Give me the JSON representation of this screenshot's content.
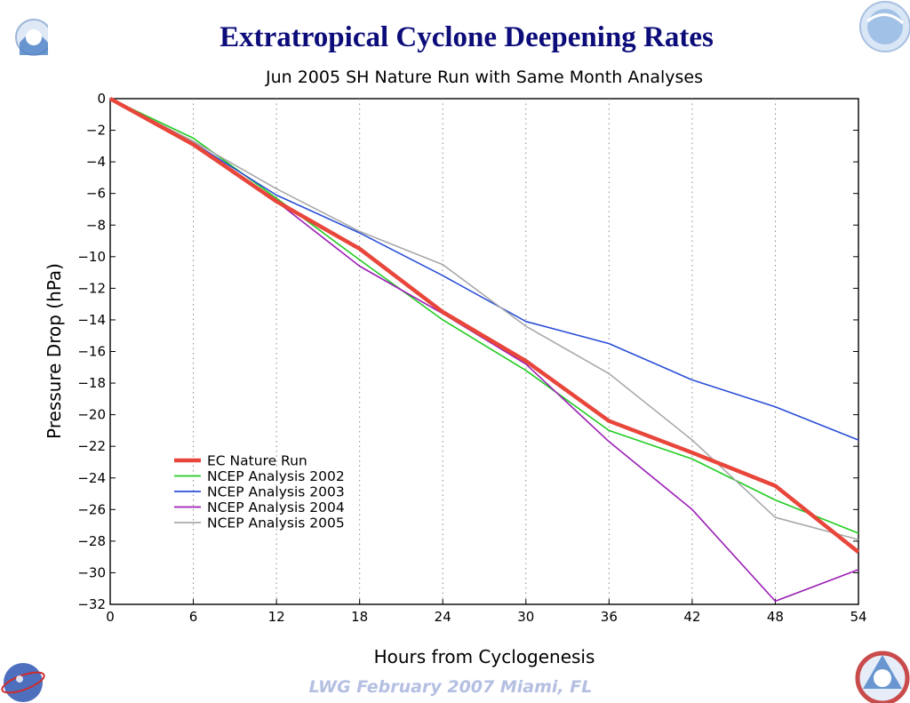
{
  "slide": {
    "title": "Extratropical Cyclone Deepening Rates",
    "footer": "LWG  February 2007 Miami, FL"
  },
  "chart_data": {
    "type": "line",
    "title": "Jun 2005 SH Nature Run with Same Month Analyses",
    "xlabel": "Hours from Cyclogenesis",
    "ylabel": "Pressure Drop (hPa)",
    "xlim": [
      0,
      54
    ],
    "ylim": [
      -32,
      0
    ],
    "x_ticks": [
      0,
      6,
      12,
      18,
      24,
      30,
      36,
      42,
      48,
      54
    ],
    "y_ticks": [
      0,
      -2,
      -4,
      -6,
      -8,
      -10,
      -12,
      -14,
      -16,
      -18,
      -20,
      -22,
      -24,
      -26,
      -28,
      -30,
      -32
    ],
    "vertical_gridlines": "dotted at each x tick",
    "legend_position": "lower-left",
    "x": [
      0,
      6,
      12,
      18,
      24,
      30,
      36,
      42,
      48,
      54
    ],
    "series": [
      {
        "name": "EC Nature Run",
        "color": "#e8463b",
        "width": "thick",
        "values": [
          0,
          -2.9,
          -6.5,
          -9.5,
          -13.5,
          -16.6,
          -20.4,
          -22.4,
          -24.5,
          -28.7
        ]
      },
      {
        "name": "NCEP Analysis 2002",
        "color": "#22cc22",
        "width": "thin",
        "values": [
          0,
          -2.5,
          -6.3,
          -10.2,
          -14.0,
          -17.2,
          -21.0,
          -22.8,
          -25.4,
          -27.5
        ]
      },
      {
        "name": "NCEP Analysis 2003",
        "color": "#2a4fd6",
        "width": "thin",
        "values": [
          0,
          -2.8,
          -6.1,
          -8.5,
          -11.2,
          -14.1,
          -15.5,
          -17.8,
          -19.5,
          -21.6
        ]
      },
      {
        "name": "NCEP Analysis 2004",
        "color": "#9b1fb5",
        "width": "thin",
        "values": [
          0,
          -2.9,
          -6.5,
          -10.6,
          -13.6,
          -16.8,
          -21.7,
          -26.0,
          -31.8,
          -29.8
        ]
      },
      {
        "name": "NCEP Analysis 2005",
        "color": "#a9a9a9",
        "width": "thin",
        "values": [
          0,
          -2.7,
          -5.7,
          -8.4,
          -10.5,
          -14.4,
          -17.4,
          -21.6,
          -26.5,
          -27.9
        ]
      }
    ]
  },
  "logos": {
    "top_left": "noaa-logo-icon",
    "top_right": "noaa-globe-icon",
    "bottom_left": "nasa-logo-icon",
    "bottom_right": "nws-logo-icon"
  }
}
